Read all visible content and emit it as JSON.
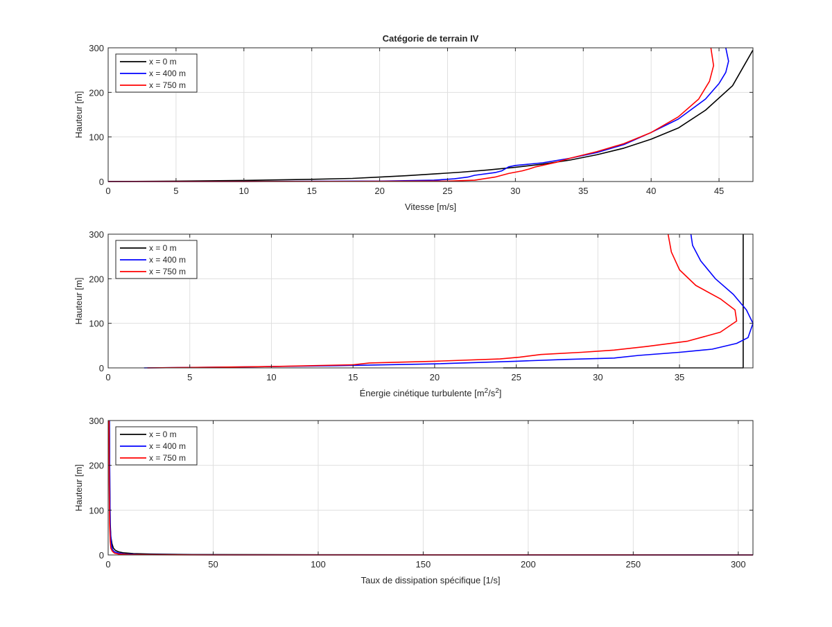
{
  "chart_data": [
    {
      "type": "line",
      "title": "Catégorie de terrain IV",
      "xlabel": "Vitesse   [m/s]",
      "ylabel": "Hauteur [m]",
      "xlim": [
        0,
        47.5
      ],
      "ylim": [
        0,
        300
      ],
      "xticks": [
        0,
        5,
        10,
        15,
        20,
        25,
        30,
        35,
        40,
        45
      ],
      "yticks": [
        0,
        100,
        200,
        300
      ],
      "grid": true,
      "legend_position": "top-left",
      "series": [
        {
          "name": "x = 0 m",
          "color": "#000000",
          "x": [
            0,
            5,
            10,
            15,
            18,
            20,
            22,
            24,
            26,
            28,
            30,
            32,
            34,
            36,
            38,
            40,
            42,
            44,
            46,
            47.5
          ],
          "y": [
            0,
            1,
            2.5,
            5,
            7,
            10,
            13,
            17,
            21,
            26,
            32,
            39,
            48,
            60,
            75,
            95,
            120,
            160,
            215,
            295
          ]
        },
        {
          "name": "x = 400 m",
          "color": "#0000ff",
          "x": [
            0,
            10,
            20,
            24,
            25.5,
            26.5,
            27,
            28.5,
            29,
            29.5,
            30,
            32,
            34,
            36,
            38,
            40,
            42,
            44,
            45,
            45.5,
            45.7,
            45.5
          ],
          "y": [
            0,
            0.3,
            1,
            3,
            6,
            10,
            14,
            20,
            24,
            33,
            36,
            42,
            52,
            65,
            83,
            110,
            140,
            185,
            220,
            245,
            270,
            300
          ]
        },
        {
          "name": "x = 750 m",
          "color": "#ff0000",
          "x": [
            0,
            10,
            20,
            25,
            27,
            28.5,
            29.5,
            30.5,
            31,
            31.5,
            33,
            34,
            36,
            38,
            40,
            42,
            43.5,
            44.3,
            44.6,
            44.4
          ],
          "y": [
            0,
            0.2,
            0.5,
            1,
            3,
            10,
            18,
            24,
            28,
            33,
            43,
            52,
            67,
            85,
            110,
            145,
            185,
            225,
            260,
            300
          ]
        }
      ]
    },
    {
      "type": "line",
      "title": "",
      "xlabel": "Énergie cinétique turbulente  [m²/s²]",
      "xlabel_base": "Énergie cinétique turbulente  [m",
      "xlabel_sup1": "2",
      "xlabel_mid": "/s",
      "xlabel_sup2": "2",
      "xlabel_end": "]",
      "ylabel": "Hauteur [m]",
      "xlim": [
        0,
        39.5
      ],
      "ylim": [
        0,
        300
      ],
      "xticks": [
        0,
        5,
        10,
        15,
        20,
        25,
        30,
        35
      ],
      "yticks": [
        0,
        100,
        200,
        300
      ],
      "grid": true,
      "legend_position": "top-left",
      "series": [
        {
          "name": "x = 0 m",
          "color": "#000000",
          "x": [
            24.2,
            38.9,
            38.9
          ],
          "y": [
            0,
            0,
            300
          ]
        },
        {
          "name": "x = 400 m",
          "color": "#0000ff",
          "x": [
            2.2,
            8,
            14,
            20,
            25,
            28,
            31,
            32.5,
            35,
            37,
            38.5,
            39.2,
            39.5,
            39.1,
            38.3,
            37.2,
            36.3,
            35.8,
            35.7
          ],
          "y": [
            0,
            2,
            5,
            9,
            15,
            19,
            22,
            28,
            35,
            42,
            55,
            68,
            100,
            130,
            165,
            200,
            240,
            275,
            300
          ]
        },
        {
          "name": "x = 750 m",
          "color": "#ff0000",
          "x": [
            2.4,
            5,
            10,
            15,
            16,
            20,
            24,
            25.2,
            26.5,
            29,
            31,
            33,
            35.5,
            37.5,
            38.5,
            38.4,
            37.5,
            36,
            35,
            34.5,
            34.3
          ],
          "y": [
            0,
            1,
            3,
            7,
            11,
            15,
            20,
            24,
            30,
            35,
            40,
            48,
            60,
            80,
            105,
            130,
            155,
            185,
            220,
            260,
            300
          ]
        }
      ]
    },
    {
      "type": "line",
      "title": "",
      "xlabel": "Taux de dissipation spécifique  [1/s]",
      "ylabel": "Hauteur [m]",
      "xlim": [
        0,
        307
      ],
      "ylim": [
        0,
        300
      ],
      "xticks": [
        0,
        50,
        100,
        150,
        200,
        250,
        300
      ],
      "yticks": [
        0,
        100,
        200,
        300
      ],
      "grid": true,
      "legend_position": "top-left",
      "series": [
        {
          "name": "x = 0 m",
          "color": "#000000",
          "x": [
            307,
            100,
            40,
            20,
            12,
            7,
            5,
            3.5,
            2.5,
            1.8,
            1.3,
            1.0,
            0.8,
            0.6
          ],
          "y": [
            0,
            0.5,
            1,
            2,
            3,
            5,
            7,
            10,
            15,
            25,
            40,
            70,
            150,
            300
          ]
        },
        {
          "name": "x = 400 m",
          "color": "#0000ff",
          "x": [
            307,
            60,
            25,
            15,
            8,
            5,
            3,
            2,
            1.5,
            1.0,
            0.8,
            0.6
          ],
          "y": [
            0,
            0.3,
            0.6,
            1,
            2,
            4,
            7,
            12,
            25,
            60,
            150,
            300
          ]
        },
        {
          "name": "x = 750 m",
          "color": "#ff0000",
          "x": [
            307,
            50,
            20,
            10,
            5,
            3,
            2,
            1.3,
            1.0,
            0.7,
            0.5,
            0.4
          ],
          "y": [
            0,
            0.2,
            0.5,
            1,
            2,
            4,
            8,
            15,
            30,
            70,
            160,
            300
          ]
        }
      ]
    }
  ]
}
